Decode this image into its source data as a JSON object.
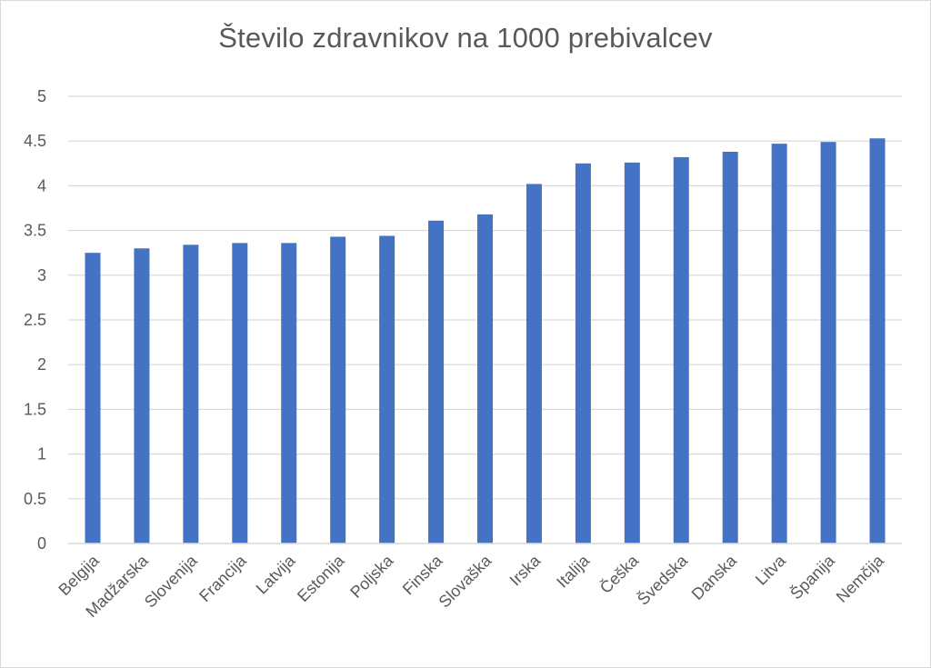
{
  "chart_data": {
    "type": "bar",
    "title": "Število zdravnikov na 1000 prebivalcev",
    "categories": [
      "Belgija",
      "Madžarska",
      "Slovenija",
      "Francija",
      "Latvija",
      "Estonija",
      "Poljska",
      "Finska",
      "Slovaška",
      "Irska",
      "Italija",
      "Češka",
      "Švedska",
      "Danska",
      "Litva",
      "Španija",
      "Nemčija"
    ],
    "series": [
      {
        "values": [
          3.25,
          3.3,
          3.34,
          3.36,
          3.36,
          3.43,
          3.44,
          3.61,
          3.68,
          4.02,
          4.25,
          4.26,
          4.32,
          4.38,
          4.47,
          4.49,
          4.53
        ]
      }
    ],
    "y_ticks": [
      "0",
      "0.5",
      "1",
      "1.5",
      "2",
      "2.5",
      "3",
      "3.5",
      "4",
      "4.5",
      "5"
    ],
    "ylim": [
      0,
      5
    ],
    "grid": true,
    "bar_color": "#4472c4",
    "gridline_color": "#d9d9d9",
    "text_color": "#595959"
  }
}
